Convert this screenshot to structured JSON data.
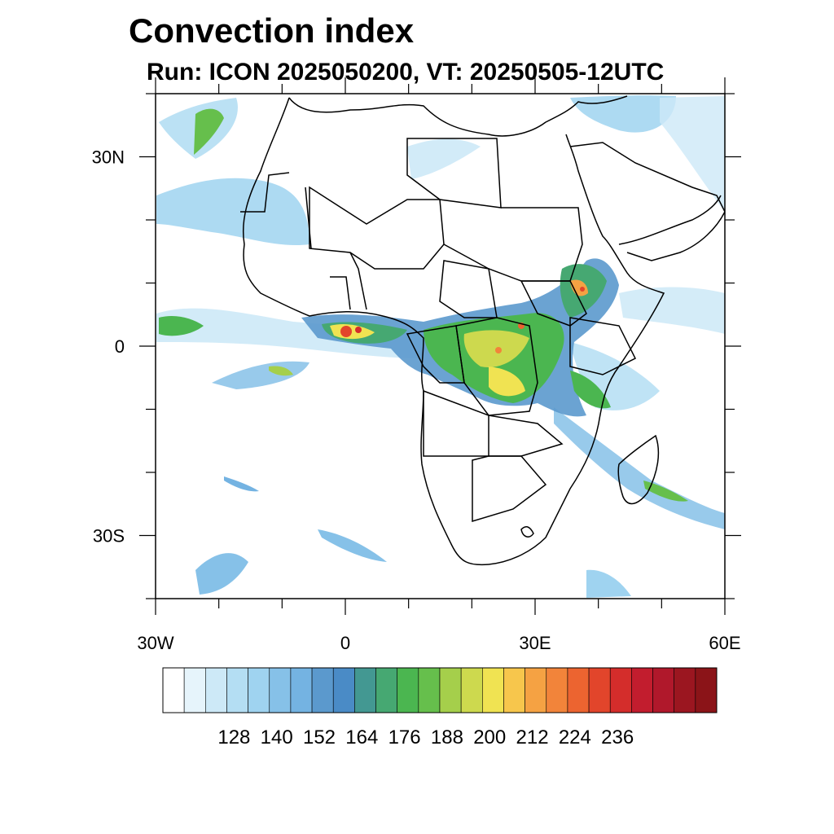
{
  "title": "Convection index",
  "subtitle": "Run: ICON 2025050200,  VT: 20250505-12UTC",
  "map": {
    "region": "Africa",
    "lon_range": [
      -30,
      60
    ],
    "lat_range": [
      -40,
      40
    ],
    "lat_labels": [
      {
        "value": 30,
        "text": "30N"
      },
      {
        "value": 0,
        "text": "0"
      },
      {
        "value": -30,
        "text": "30S"
      }
    ],
    "lon_labels": [
      {
        "value": -30,
        "text": "30W"
      },
      {
        "value": 0,
        "text": "0"
      },
      {
        "value": 30,
        "text": "30E"
      },
      {
        "value": 60,
        "text": "60E"
      }
    ]
  },
  "colorbar": {
    "colors": [
      "#ffffff",
      "#e6f4fb",
      "#cde9f7",
      "#b4def3",
      "#9fd3f0",
      "#86c1e8",
      "#74b3e2",
      "#5b99cd",
      "#4a8bc6",
      "#439892",
      "#46a872",
      "#4bb650",
      "#66bf4c",
      "#a5cf4b",
      "#cdd94e",
      "#f0e352",
      "#f7c64c",
      "#f5a243",
      "#f2843a",
      "#ec6430",
      "#e2452b",
      "#d42d2b",
      "#c21d2e",
      "#b0182b",
      "#9b1620",
      "#8b1418"
    ],
    "labels": [
      "128",
      "140",
      "152",
      "164",
      "176",
      "188",
      "200",
      "212",
      "224",
      "236"
    ],
    "label_boundary_index": [
      2,
      4,
      6,
      8,
      10,
      12,
      14,
      16,
      18,
      20
    ]
  }
}
